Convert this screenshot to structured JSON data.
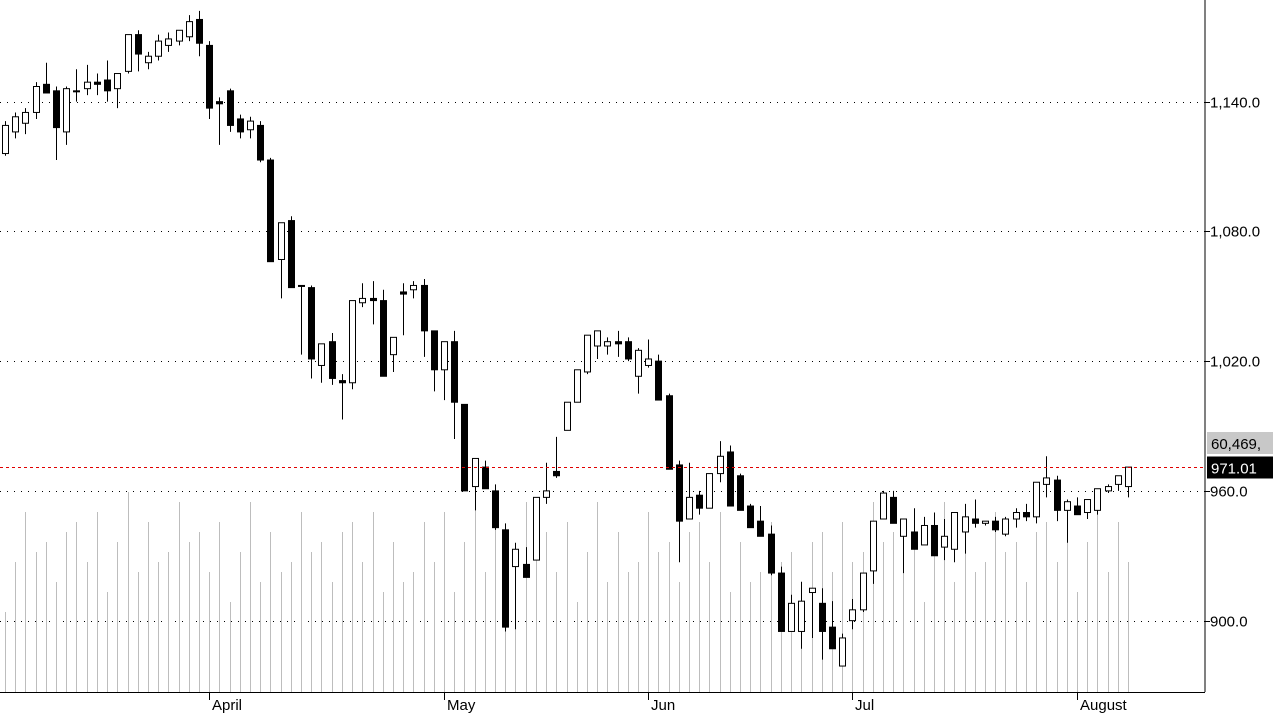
{
  "chart_data": {
    "type": "candlestick",
    "title": "",
    "xlabel": "",
    "ylabel": "",
    "ylim": [
      867,
      1187
    ],
    "x_month_labels": [
      "April",
      "May",
      "Jun",
      "Jul",
      "August"
    ],
    "y_ticks": [
      900,
      960,
      1020,
      1080,
      1140
    ],
    "y_tick_labels": [
      "900.0",
      "960.0",
      "1,020.0",
      "1,080.0",
      "1,140.0"
    ],
    "last_price": 971.01,
    "last_price_label": "971.01",
    "volume_label": "60,469,",
    "reference_line": 971.01,
    "grid": "horizontal dotted",
    "candles_ohlc": [
      [
        1116,
        1131,
        1115,
        1129
      ],
      [
        1126,
        1135,
        1123,
        1133
      ],
      [
        1130,
        1137,
        1125,
        1135
      ],
      [
        1135,
        1149,
        1132,
        1147
      ],
      [
        1148,
        1158,
        1145,
        1144
      ],
      [
        1145,
        1147,
        1113,
        1128
      ],
      [
        1126,
        1147,
        1120,
        1146
      ],
      [
        1145,
        1155,
        1140,
        1145
      ],
      [
        1146,
        1157,
        1143,
        1149
      ],
      [
        1149,
        1153,
        1143,
        1148
      ],
      [
        1150,
        1159,
        1140,
        1145
      ],
      [
        1146,
        1152,
        1137,
        1153
      ],
      [
        1154,
        1167,
        1153,
        1171
      ],
      [
        1171,
        1173,
        1154,
        1162
      ],
      [
        1158,
        1163,
        1155,
        1161
      ],
      [
        1161,
        1171,
        1159,
        1168
      ],
      [
        1166,
        1172,
        1163,
        1169
      ],
      [
        1168,
        1172,
        1166,
        1173
      ],
      [
        1170,
        1180,
        1168,
        1177
      ],
      [
        1178,
        1182,
        1161,
        1167
      ],
      [
        1166,
        1168,
        1132,
        1137
      ],
      [
        1140,
        1142,
        1120,
        1139
      ],
      [
        1145,
        1146,
        1126,
        1129
      ],
      [
        1132,
        1134,
        1123,
        1126
      ],
      [
        1127,
        1133,
        1123,
        1131
      ],
      [
        1129,
        1131,
        1112,
        1113
      ],
      [
        1113,
        1114,
        1076,
        1066
      ],
      [
        1067,
        1079,
        1049,
        1084
      ],
      [
        1085,
        1087,
        1054,
        1054
      ],
      [
        1055,
        1055,
        1023,
        1055
      ],
      [
        1054,
        1055,
        1012,
        1021
      ],
      [
        1018,
        1022,
        1010,
        1028
      ],
      [
        1029,
        1033,
        1009,
        1012
      ],
      [
        1011,
        1014,
        993,
        1010
      ],
      [
        1010,
        1012,
        1007,
        1048
      ],
      [
        1047,
        1056,
        1045,
        1049
      ],
      [
        1049,
        1057,
        1037,
        1048
      ],
      [
        1048,
        1053,
        1016,
        1013
      ],
      [
        1023,
        1030,
        1015,
        1031
      ],
      [
        1052,
        1056,
        1032,
        1051
      ],
      [
        1053,
        1057,
        1049,
        1055
      ],
      [
        1055,
        1058,
        1022,
        1034
      ],
      [
        1034,
        1023,
        1006,
        1016
      ],
      [
        1016,
        1022,
        1002,
        1029
      ],
      [
        1029,
        1034,
        984,
        1001
      ],
      [
        1000,
        1000,
        964,
        960
      ],
      [
        962,
        973,
        951,
        975
      ],
      [
        971,
        974,
        961,
        961
      ],
      [
        960,
        963,
        942,
        943
      ],
      [
        942,
        945,
        895,
        897
      ],
      [
        925,
        936,
        896,
        933
      ],
      [
        926,
        934,
        920,
        920
      ],
      [
        928,
        930,
        948,
        957
      ],
      [
        957,
        973,
        954,
        960
      ],
      [
        969,
        985,
        966,
        967
      ],
      [
        988,
        989,
        1000,
        1001
      ],
      [
        1001,
        1007,
        1010,
        1016
      ],
      [
        1015,
        1023,
        1014,
        1032
      ],
      [
        1027,
        1032,
        1021,
        1034
      ],
      [
        1027,
        1031,
        1023,
        1029
      ],
      [
        1029,
        1034,
        1022,
        1028
      ],
      [
        1029,
        1031,
        1020,
        1021
      ],
      [
        1013,
        1026,
        1005,
        1025
      ],
      [
        1018,
        1030,
        1017,
        1021
      ],
      [
        1020,
        1023,
        1016,
        1002
      ],
      [
        1004,
        1005,
        971,
        970
      ],
      [
        972,
        974,
        927,
        946
      ],
      [
        947,
        973,
        958,
        957
      ],
      [
        958,
        960,
        949,
        952
      ],
      [
        952,
        962,
        954,
        968
      ],
      [
        968,
        983,
        964,
        976
      ],
      [
        978,
        981,
        965,
        953
      ],
      [
        967,
        968,
        951,
        951
      ],
      [
        953,
        954,
        945,
        943
      ],
      [
        946,
        953,
        939,
        939
      ],
      [
        940,
        944,
        921,
        922
      ],
      [
        922,
        925,
        897,
        895
      ],
      [
        895,
        912,
        900,
        908
      ],
      [
        895,
        918,
        887,
        909
      ],
      [
        913,
        909,
        892,
        915
      ],
      [
        908,
        915,
        882,
        895
      ],
      [
        897,
        909,
        889,
        887
      ],
      [
        879,
        894,
        885,
        892
      ],
      [
        900,
        910,
        896,
        905
      ],
      [
        905,
        910,
        904,
        922
      ],
      [
        923,
        929,
        917,
        946
      ],
      [
        947,
        960,
        953,
        959
      ],
      [
        957,
        960,
        946,
        945
      ],
      [
        939,
        947,
        922,
        947
      ],
      [
        941,
        952,
        935,
        933
      ],
      [
        935,
        948,
        937,
        944
      ],
      [
        944,
        950,
        939,
        930
      ],
      [
        934,
        947,
        928,
        939
      ],
      [
        933,
        943,
        927,
        950
      ],
      [
        941,
        954,
        931,
        948
      ],
      [
        947,
        956,
        943,
        945
      ],
      [
        945,
        946,
        944,
        946
      ],
      [
        946,
        948,
        941,
        942
      ],
      [
        940,
        948,
        939,
        947
      ],
      [
        947,
        952,
        943,
        950
      ],
      [
        950,
        954,
        946,
        948
      ],
      [
        948,
        956,
        945,
        964
      ],
      [
        963,
        976,
        957,
        966
      ],
      [
        965,
        967,
        946,
        951
      ],
      [
        951,
        956,
        936,
        955
      ],
      [
        953,
        957,
        949,
        949
      ],
      [
        950,
        956,
        947,
        956
      ],
      [
        951,
        960,
        949,
        961
      ],
      [
        960,
        963,
        959,
        962
      ],
      [
        963,
        966,
        960,
        967
      ],
      [
        962,
        967,
        957,
        971
      ]
    ]
  }
}
